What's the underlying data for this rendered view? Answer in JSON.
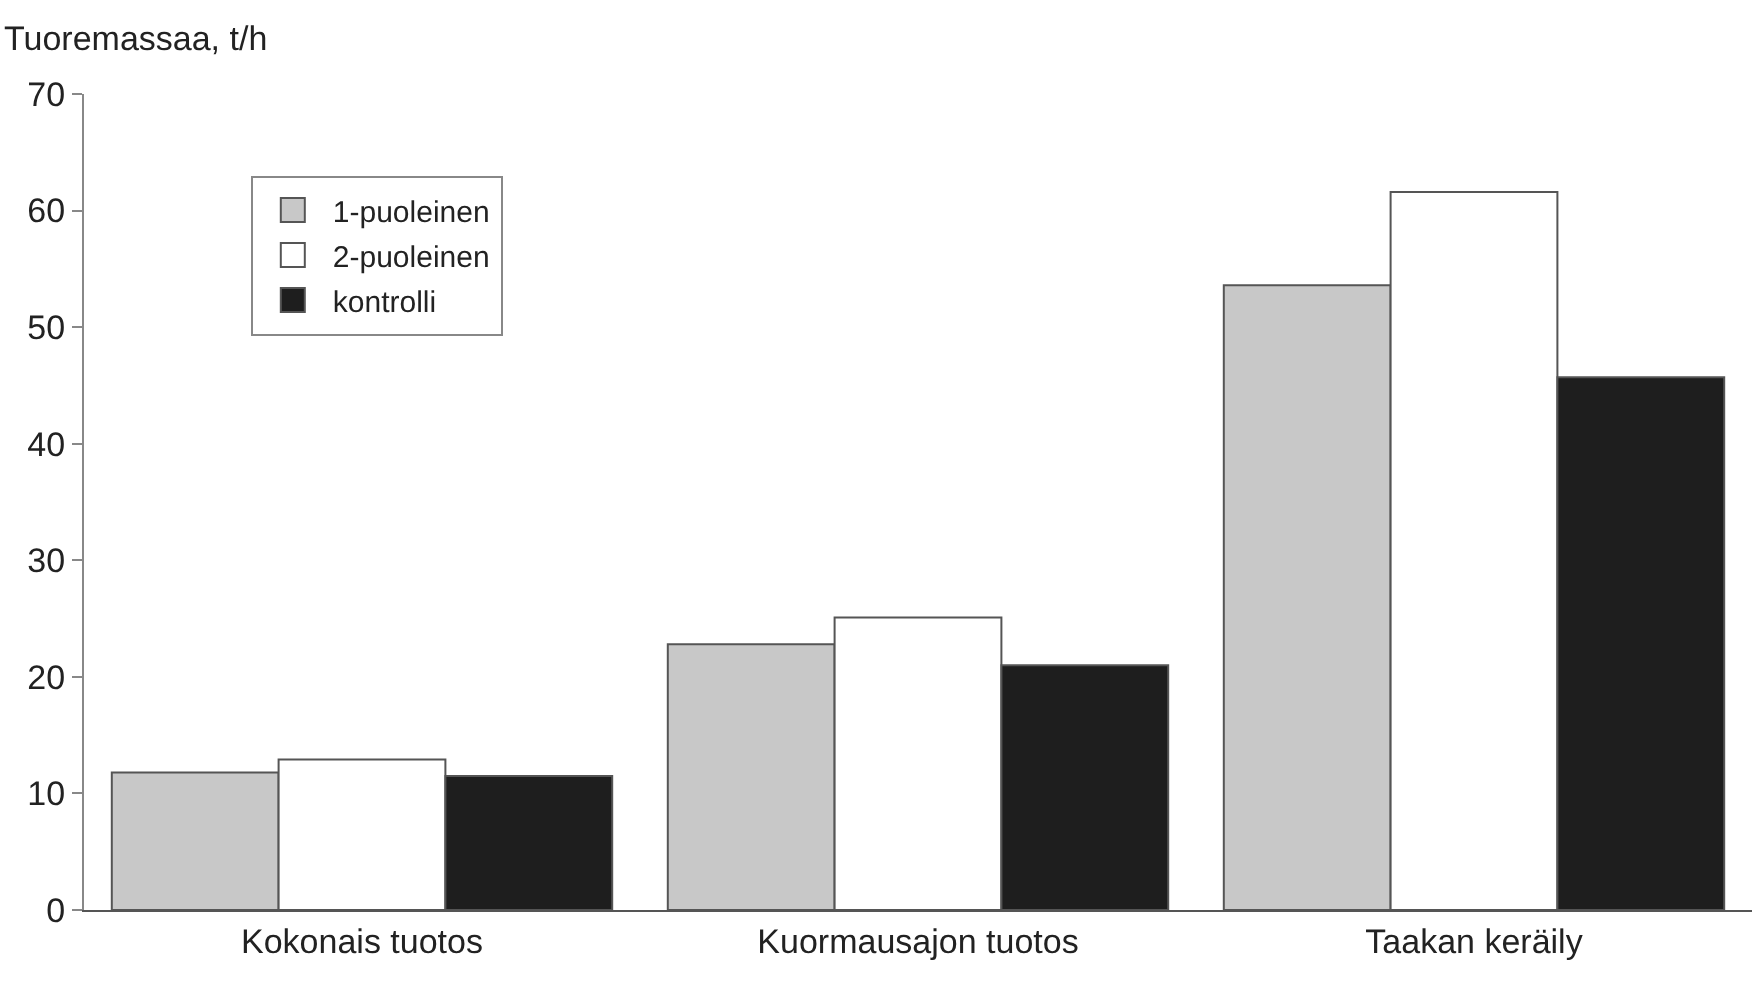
{
  "chart_data": {
    "type": "bar",
    "ylabel": "Tuoremassaa, t/h",
    "categories": [
      "Kokonais tuotos",
      "Kuormausajon tuotos",
      "Taakan keräily"
    ],
    "series": [
      {
        "name": "1-puoleinen",
        "color": "#c8c8c8",
        "values": [
          11.8,
          22.8,
          53.6
        ]
      },
      {
        "name": "2-puoleinen",
        "color": "#ffffff",
        "values": [
          12.9,
          25.1,
          61.6
        ]
      },
      {
        "name": "kontrolli",
        "color": "#1e1e1e",
        "values": [
          11.5,
          21.0,
          45.7
        ]
      }
    ],
    "ylim": [
      0,
      70
    ],
    "yticks": [
      0,
      10,
      20,
      30,
      40,
      50,
      60,
      70
    ],
    "grid": false,
    "legend": "top left"
  }
}
